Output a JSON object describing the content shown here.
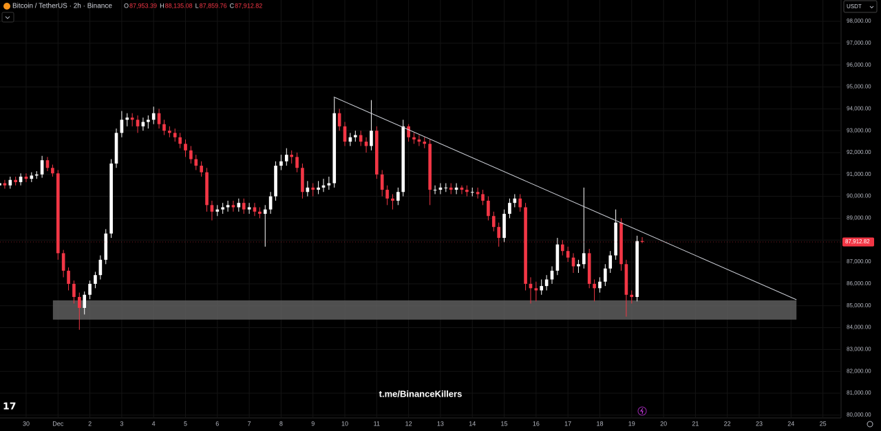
{
  "header": {
    "symbol": "Bitcoin / TetherUS · 2h · Binance",
    "ohlc": [
      {
        "key": "O",
        "value": "87,953.39"
      },
      {
        "key": "H",
        "value": "88,135.08"
      },
      {
        "key": "L",
        "value": "87,859.76"
      },
      {
        "key": "C",
        "value": "87,912.82"
      }
    ],
    "currency": "USDT",
    "watermark": "t.me/BinanceKillers"
  },
  "chart_data": {
    "type": "candlestick",
    "up_color": "#ffffff",
    "down_color": "#f23645",
    "grid": true,
    "xlim": [
      -0.82,
      25.57
    ],
    "ylim": [
      79870,
      98975
    ],
    "xticks": [
      {
        "value": 0,
        "label": "30"
      },
      {
        "value": 1,
        "label": "Dec"
      },
      2,
      3,
      4,
      5,
      6,
      7,
      8,
      9,
      10,
      11,
      12,
      13,
      14,
      15,
      16,
      17,
      18,
      19,
      20,
      21,
      22,
      23,
      24,
      25
    ],
    "yticks": [
      {
        "value": 80000,
        "label": "80,000.00"
      },
      {
        "value": 81000,
        "label": "81,000.00"
      },
      {
        "value": 82000,
        "label": "82,000.00"
      },
      {
        "value": 83000,
        "label": "83,000.00"
      },
      {
        "value": 84000,
        "label": "84,000.00"
      },
      {
        "value": 85000,
        "label": "85,000.00"
      },
      {
        "value": 86000,
        "label": "86,000.00"
      },
      {
        "value": 87000,
        "label": "87,000.00"
      },
      {
        "value": 88000,
        "label": "88,000.00"
      },
      {
        "value": 89000,
        "label": "89,000.00"
      },
      {
        "value": 90000,
        "label": "90,000.00"
      },
      {
        "value": 91000,
        "label": "91,000.00"
      },
      {
        "value": 92000,
        "label": "92,000.00"
      },
      {
        "value": 93000,
        "label": "93,000.00"
      },
      {
        "value": 94000,
        "label": "94,000.00"
      },
      {
        "value": 95000,
        "label": "95,000.00"
      },
      {
        "value": 96000,
        "label": "96,000.00"
      },
      {
        "value": 97000,
        "label": "97,000.00"
      },
      {
        "value": 98000,
        "label": "98,000.00"
      }
    ],
    "x": [
      -0.83,
      -0.67,
      -0.5,
      -0.33,
      -0.17,
      0,
      0.17,
      0.33,
      0.5,
      0.67,
      0.83,
      1,
      1.17,
      1.33,
      1.5,
      1.67,
      1.83,
      2,
      2.17,
      2.33,
      2.5,
      2.67,
      2.83,
      3,
      3.17,
      3.33,
      3.5,
      3.67,
      3.83,
      4,
      4.17,
      4.33,
      4.5,
      4.67,
      4.83,
      5,
      5.17,
      5.33,
      5.5,
      5.67,
      5.83,
      6,
      6.17,
      6.33,
      6.5,
      6.67,
      6.83,
      7,
      7.17,
      7.33,
      7.5,
      7.67,
      7.83,
      8,
      8.17,
      8.33,
      8.5,
      8.67,
      8.83,
      9,
      9.17,
      9.33,
      9.5,
      9.67,
      9.83,
      10,
      10.17,
      10.33,
      10.5,
      10.67,
      10.83,
      11,
      11.17,
      11.33,
      11.5,
      11.67,
      11.83,
      12,
      12.17,
      12.33,
      12.5,
      12.67,
      12.83,
      13,
      13.17,
      13.33,
      13.5,
      13.67,
      13.83,
      14,
      14.17,
      14.33,
      14.5,
      14.67,
      14.83,
      15,
      15.17,
      15.33,
      15.5,
      15.67,
      15.83,
      16,
      16.17,
      16.33,
      16.5,
      16.67,
      16.83,
      17,
      17.17,
      17.33,
      17.5,
      17.67,
      17.83,
      18,
      18.17,
      18.33,
      18.5,
      18.67,
      18.83,
      19,
      19.17,
      19.33
    ],
    "open": [
      90500,
      90600,
      90500,
      90750,
      90650,
      90900,
      90800,
      90950,
      91000,
      91650,
      91300,
      91050,
      87400,
      86600,
      86000,
      85400,
      84900,
      85500,
      86000,
      86400,
      87100,
      88300,
      91500,
      92900,
      93500,
      93600,
      93500,
      93200,
      93400,
      93500,
      93800,
      93300,
      93000,
      92900,
      92700,
      92400,
      92100,
      91700,
      91400,
      91100,
      89600,
      89300,
      89400,
      89500,
      89600,
      89500,
      89700,
      89400,
      89500,
      89300,
      89200,
      89400,
      90000,
      91400,
      91600,
      91900,
      91800,
      91300,
      90200,
      90400,
      90300,
      90400,
      90500,
      90600,
      93800,
      93200,
      92500,
      92700,
      92800,
      92500,
      92300,
      93000,
      91000,
      90300,
      89900,
      89800,
      90200,
      93200,
      92700,
      92600,
      92500,
      92400,
      90300,
      90300,
      90400,
      90400,
      90300,
      90400,
      90300,
      90200,
      90200,
      90100,
      89800,
      89100,
      88600,
      88100,
      89200,
      89700,
      89900,
      89500,
      86000,
      85800,
      85700,
      85900,
      86200,
      86600,
      87800,
      87500,
      87200,
      86800,
      86900,
      87400,
      86000,
      85800,
      86100,
      86700,
      87300,
      88800,
      86900,
      85500,
      85400,
      87953.39
    ],
    "high": [
      90750,
      90750,
      90900,
      90900,
      91050,
      91050,
      91100,
      91150,
      91850,
      91800,
      91450,
      91200,
      87550,
      86750,
      86150,
      85600,
      85650,
      86150,
      86550,
      87300,
      88500,
      91700,
      93100,
      93900,
      93800,
      93800,
      93700,
      93600,
      93700,
      94100,
      94000,
      93500,
      93200,
      93100,
      92900,
      92600,
      92300,
      91900,
      91600,
      91300,
      89800,
      89600,
      89700,
      89800,
      89800,
      89900,
      89900,
      89700,
      89700,
      89500,
      89600,
      90200,
      91600,
      91900,
      92200,
      92100,
      92000,
      91500,
      90700,
      90600,
      90700,
      90800,
      90900,
      94500,
      94000,
      93400,
      92900,
      93000,
      93000,
      92700,
      94400,
      93200,
      91200,
      90500,
      90100,
      90400,
      93500,
      93300,
      92900,
      92800,
      92700,
      92600,
      90500,
      90600,
      90600,
      90600,
      90600,
      90500,
      90500,
      90400,
      90400,
      90300,
      90000,
      89300,
      88800,
      89400,
      89900,
      90100,
      90100,
      89700,
      86300,
      86100,
      86200,
      86400,
      86800,
      88100,
      88000,
      87700,
      87400,
      87100,
      90400,
      87600,
      86200,
      86300,
      86900,
      87500,
      89400,
      89000,
      87100,
      85700,
      88200,
      88135.08
    ],
    "low": [
      90350,
      90350,
      90350,
      90500,
      90500,
      90650,
      90650,
      90800,
      90850,
      91150,
      90900,
      87100,
      86300,
      85700,
      85100,
      83900,
      84600,
      85300,
      85800,
      86200,
      86900,
      88100,
      91300,
      92700,
      93200,
      93200,
      92900,
      93000,
      93100,
      93300,
      93100,
      92800,
      92700,
      92500,
      92200,
      91800,
      91500,
      91200,
      90900,
      89300,
      88900,
      89100,
      89200,
      89300,
      89300,
      89300,
      89200,
      89200,
      89100,
      89000,
      87700,
      89200,
      89800,
      91200,
      91400,
      91500,
      91100,
      89900,
      90000,
      90000,
      90100,
      90200,
      90300,
      90400,
      93000,
      92300,
      92300,
      92500,
      92300,
      92000,
      92100,
      90800,
      90000,
      89600,
      89400,
      89600,
      90000,
      92500,
      92400,
      92300,
      92200,
      89600,
      90100,
      90100,
      90200,
      90100,
      90100,
      90100,
      90000,
      90000,
      89900,
      89600,
      88900,
      88400,
      87700,
      87900,
      89000,
      89500,
      89300,
      85700,
      85100,
      85200,
      85500,
      85700,
      86000,
      86400,
      87300,
      87000,
      86500,
      86500,
      86700,
      85800,
      85200,
      85600,
      85900,
      86500,
      87100,
      86600,
      84500,
      85100,
      85200,
      87859.76
    ],
    "close": [
      90600,
      90500,
      90750,
      90650,
      90900,
      90800,
      90950,
      91000,
      91650,
      91300,
      91050,
      87400,
      86600,
      86000,
      85400,
      84900,
      85500,
      86000,
      86400,
      87100,
      88300,
      91500,
      92900,
      93500,
      93600,
      93500,
      93200,
      93400,
      93500,
      93800,
      93300,
      93000,
      92900,
      92700,
      92400,
      92100,
      91700,
      91400,
      91100,
      89600,
      89300,
      89400,
      89500,
      89600,
      89500,
      89700,
      89400,
      89500,
      89300,
      89200,
      89400,
      90000,
      91400,
      91600,
      91900,
      91800,
      91300,
      90200,
      90400,
      90300,
      90400,
      90500,
      90600,
      93800,
      93200,
      92500,
      92700,
      92800,
      92500,
      92300,
      93000,
      91000,
      90300,
      89900,
      89800,
      90200,
      93200,
      92700,
      92600,
      92500,
      92400,
      90300,
      90300,
      90400,
      90400,
      90300,
      90400,
      90300,
      90200,
      90200,
      90100,
      89800,
      89100,
      88600,
      88100,
      89200,
      89700,
      89900,
      89500,
      86000,
      85800,
      85700,
      85900,
      86200,
      86600,
      87800,
      87500,
      87200,
      86800,
      86900,
      87400,
      86000,
      85800,
      86100,
      86700,
      87300,
      88800,
      86900,
      85500,
      85400,
      87953.39,
      87912.82
    ],
    "last_price_label": "87,912.82",
    "trendline": {
      "x": [
        9.65,
        24.17
      ],
      "y": [
        94544,
        85275
      ],
      "color": "#d1d4dc"
    },
    "zone": {
      "x": [
        0.84,
        24.17
      ],
      "y": [
        84364,
        85244
      ],
      "color": "#5d5d5d"
    }
  }
}
